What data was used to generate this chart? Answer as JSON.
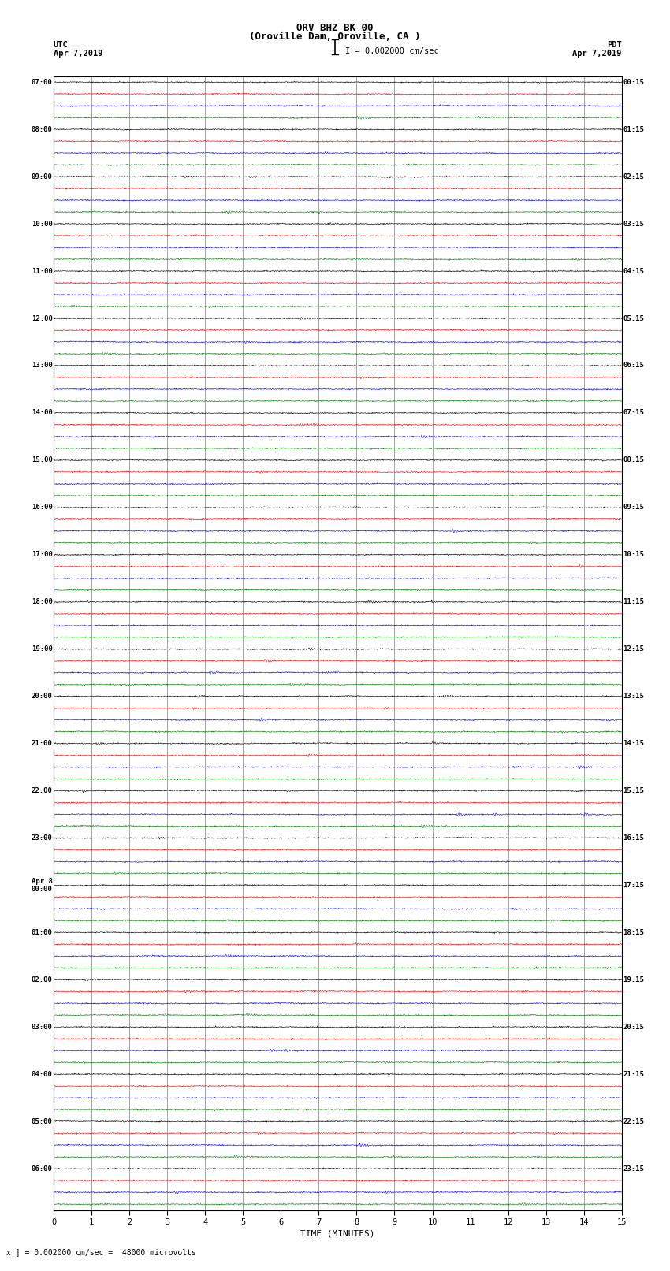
{
  "title_line1": "ORV BHZ BK 00",
  "title_line2": "(Oroville Dam, Oroville, CA )",
  "scale_label": "I = 0.002000 cm/sec",
  "utc_label": "UTC",
  "pdt_label": "PDT",
  "date_left": "Apr 7,2019",
  "date_right": "Apr 7,2019",
  "xlabel": "TIME (MINUTES)",
  "footer": "x ] = 0.002000 cm/sec =  48000 microvolts",
  "xmin": 0,
  "xmax": 15,
  "xticks": [
    0,
    1,
    2,
    3,
    4,
    5,
    6,
    7,
    8,
    9,
    10,
    11,
    12,
    13,
    14,
    15
  ],
  "bg_color": "#ffffff",
  "trace_colors": [
    "#000000",
    "#ff0000",
    "#0000ff",
    "#008000"
  ],
  "n_groups": 24,
  "traces_per_group": 4,
  "left_times": [
    "07:00",
    "08:00",
    "09:00",
    "10:00",
    "11:00",
    "12:00",
    "13:00",
    "14:00",
    "15:00",
    "16:00",
    "17:00",
    "18:00",
    "19:00",
    "20:00",
    "21:00",
    "22:00",
    "23:00",
    "Apr 8\n00:00",
    "01:00",
    "02:00",
    "03:00",
    "04:00",
    "05:00",
    "06:00"
  ],
  "right_times": [
    "00:15",
    "01:15",
    "02:15",
    "03:15",
    "04:15",
    "05:15",
    "06:15",
    "07:15",
    "08:15",
    "09:15",
    "10:15",
    "11:15",
    "12:15",
    "13:15",
    "14:15",
    "15:15",
    "16:15",
    "17:15",
    "18:15",
    "19:15",
    "20:15",
    "21:15",
    "22:15",
    "23:15"
  ],
  "vline_color": "#808080",
  "vline_positions": [
    1,
    2,
    3,
    4,
    5,
    6,
    7,
    8,
    9,
    10,
    11,
    12,
    13,
    14
  ],
  "noise_scale": 0.06,
  "seed": 42
}
